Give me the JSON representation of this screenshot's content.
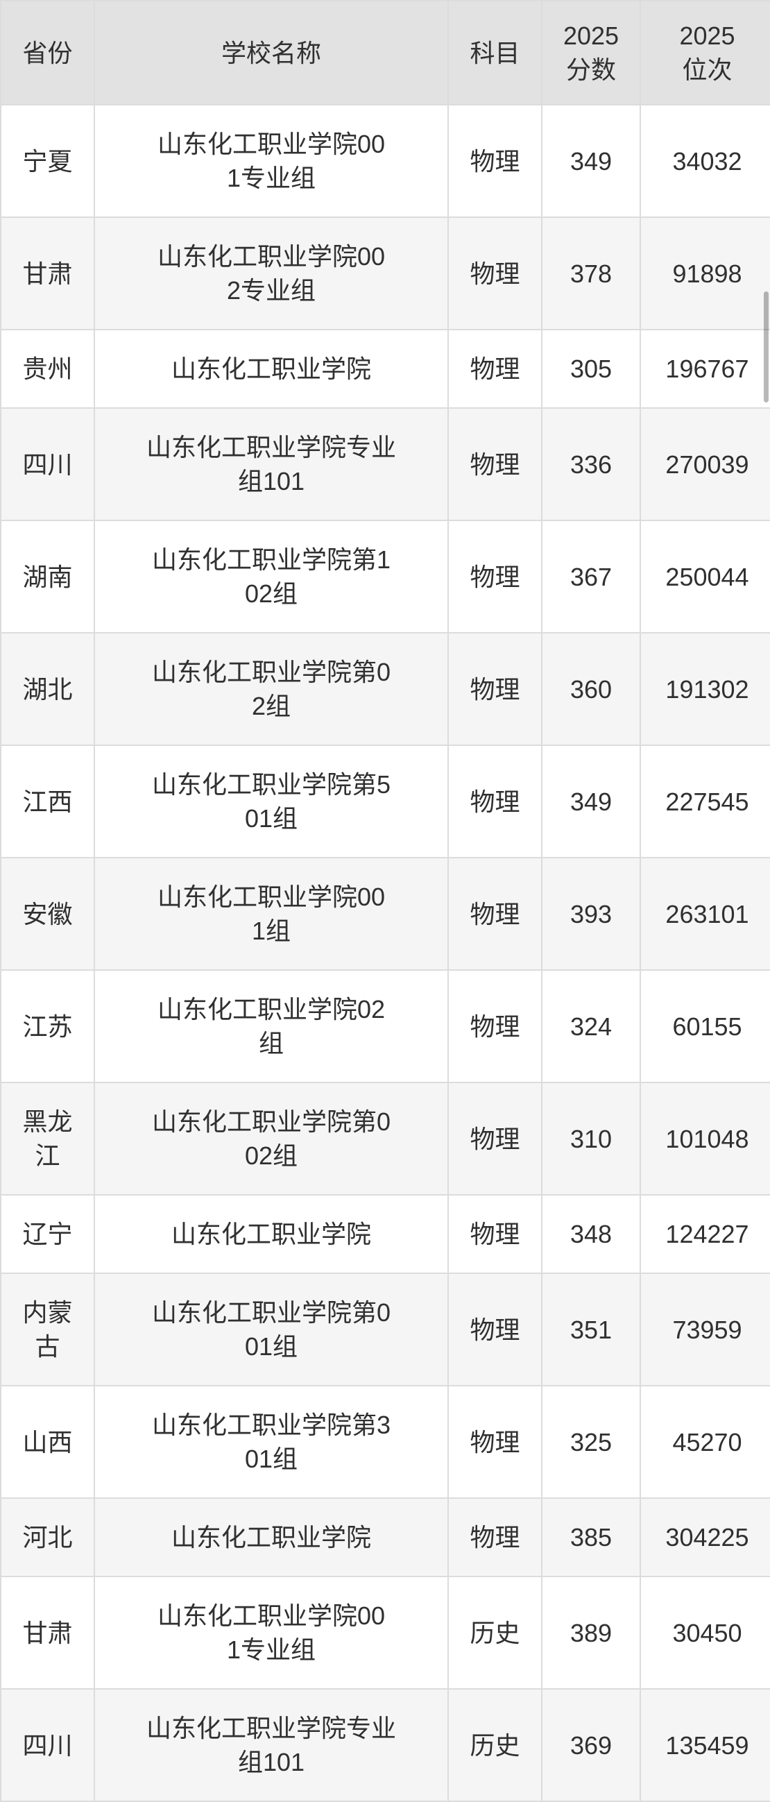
{
  "colors": {
    "header_bg": "#e2e2e2",
    "row_bg": "#ffffff",
    "row_alt_bg": "#f5f5f5",
    "border": "#dcdcdc",
    "text": "#303030"
  },
  "table": {
    "columns": [
      {
        "key": "province",
        "label": "省份"
      },
      {
        "key": "school",
        "label": "学校名称"
      },
      {
        "key": "subject",
        "label": "科目"
      },
      {
        "key": "score",
        "label": "2025\n分数"
      },
      {
        "key": "rank",
        "label": "2025\n位次"
      }
    ],
    "rows": [
      {
        "province": "宁夏",
        "school": "山东化工职业学院00\n1专业组",
        "subject": "物理",
        "score": "349",
        "rank": "34032"
      },
      {
        "province": "甘肃",
        "school": "山东化工职业学院00\n2专业组",
        "subject": "物理",
        "score": "378",
        "rank": "91898"
      },
      {
        "province": "贵州",
        "school": "山东化工职业学院",
        "subject": "物理",
        "score": "305",
        "rank": "196767"
      },
      {
        "province": "四川",
        "school": "山东化工职业学院专业\n组101",
        "subject": "物理",
        "score": "336",
        "rank": "270039"
      },
      {
        "province": "湖南",
        "school": "山东化工职业学院第1\n02组",
        "subject": "物理",
        "score": "367",
        "rank": "250044"
      },
      {
        "province": "湖北",
        "school": "山东化工职业学院第0\n2组",
        "subject": "物理",
        "score": "360",
        "rank": "191302"
      },
      {
        "province": "江西",
        "school": "山东化工职业学院第5\n01组",
        "subject": "物理",
        "score": "349",
        "rank": "227545"
      },
      {
        "province": "安徽",
        "school": "山东化工职业学院00\n1组",
        "subject": "物理",
        "score": "393",
        "rank": "263101"
      },
      {
        "province": "江苏",
        "school": "山东化工职业学院02\n组",
        "subject": "物理",
        "score": "324",
        "rank": "60155"
      },
      {
        "province": "黑龙\n江",
        "school": "山东化工职业学院第0\n02组",
        "subject": "物理",
        "score": "310",
        "rank": "101048"
      },
      {
        "province": "辽宁",
        "school": "山东化工职业学院",
        "subject": "物理",
        "score": "348",
        "rank": "124227"
      },
      {
        "province": "内蒙\n古",
        "school": "山东化工职业学院第0\n01组",
        "subject": "物理",
        "score": "351",
        "rank": "73959"
      },
      {
        "province": "山西",
        "school": "山东化工职业学院第3\n01组",
        "subject": "物理",
        "score": "325",
        "rank": "45270"
      },
      {
        "province": "河北",
        "school": "山东化工职业学院",
        "subject": "物理",
        "score": "385",
        "rank": "304225"
      },
      {
        "province": "甘肃",
        "school": "山东化工职业学院00\n1专业组",
        "subject": "历史",
        "score": "389",
        "rank": "30450"
      },
      {
        "province": "四川",
        "school": "山东化工职业学院专业\n组101",
        "subject": "历史",
        "score": "369",
        "rank": "135459"
      }
    ]
  }
}
